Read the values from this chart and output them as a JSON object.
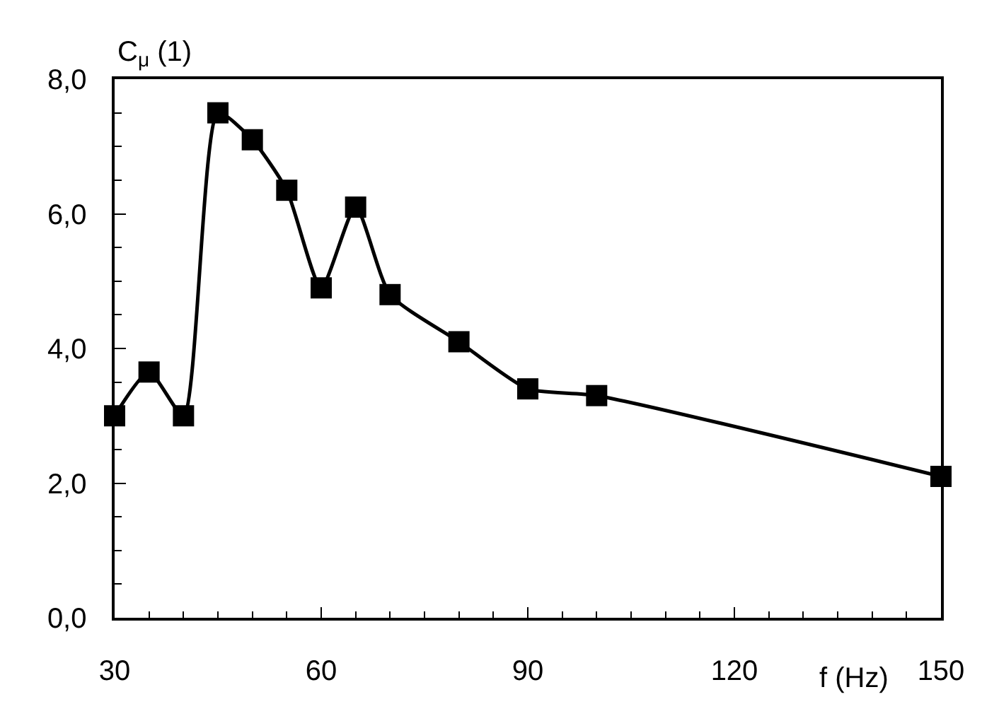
{
  "chart_data": {
    "type": "line",
    "xlabel": "f (Hz)",
    "ylabel": "C$_{μ}$ (1)",
    "x": [
      30,
      35,
      40,
      45,
      50,
      55,
      60,
      65,
      70,
      80,
      90,
      100,
      150
    ],
    "series": [
      {
        "color": "#000000",
        "values": [
          3.0,
          3.65,
          3.0,
          7.5,
          7.1,
          6.35,
          4.9,
          6.1,
          4.8,
          4.1,
          3.4,
          3.3,
          2.1
        ]
      }
    ],
    "xlim": [
      30,
      150
    ],
    "xticks": [
      30,
      60,
      90,
      120,
      150
    ],
    "ylim": [
      0,
      8
    ],
    "yticks": [
      {
        "value": 0,
        "label": "0,0"
      },
      {
        "value": 2,
        "label": "2,0"
      },
      {
        "value": 4,
        "label": "4,0"
      },
      {
        "value": 6,
        "label": "6,0"
      },
      {
        "value": 8,
        "label": "8,0"
      }
    ],
    "marker": "square",
    "line_style": "solid"
  }
}
